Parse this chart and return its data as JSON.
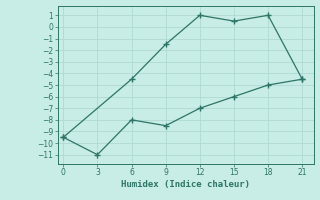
{
  "series1_x": [
    0,
    6,
    9,
    12,
    15,
    18,
    21
  ],
  "series1_y": [
    -9.5,
    -4.5,
    -1.5,
    1,
    0.5,
    1,
    -4.5
  ],
  "series2_x": [
    0,
    3,
    6,
    9,
    12,
    15,
    18,
    21
  ],
  "series2_y": [
    -9.5,
    -11,
    -8,
    -8.5,
    -7,
    -6,
    -5,
    -4.5
  ],
  "line_color": "#2d7566",
  "bg_color": "#c8ece6",
  "grid_color": "#aed9d2",
  "xlabel": "Humidex (Indice chaleur)",
  "xlim": [
    -0.5,
    22
  ],
  "ylim": [
    -11.8,
    1.8
  ],
  "xticks": [
    0,
    3,
    6,
    9,
    12,
    15,
    18,
    21
  ],
  "yticks": [
    1,
    0,
    -1,
    -2,
    -3,
    -4,
    -5,
    -6,
    -7,
    -8,
    -9,
    -10,
    -11
  ]
}
